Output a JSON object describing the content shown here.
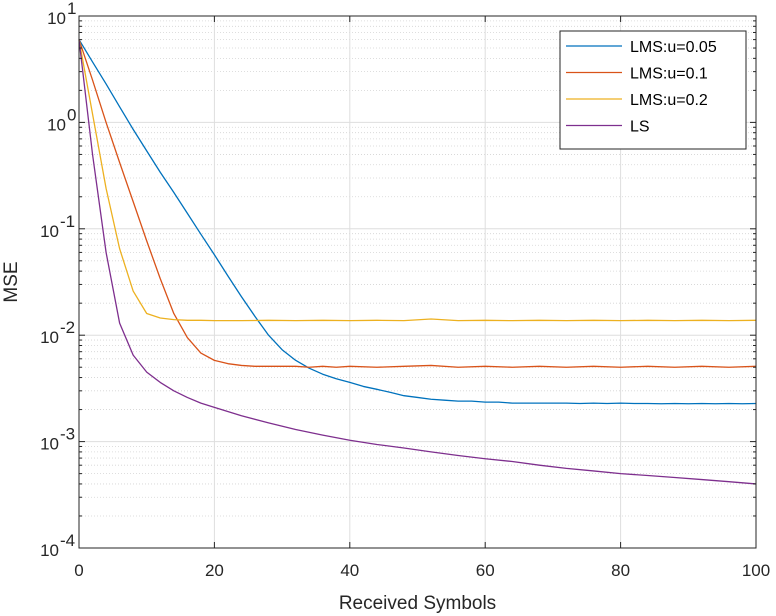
{
  "chart_data": {
    "type": "line",
    "title": "",
    "xlabel": "Received Symbols",
    "ylabel": "MSE",
    "xlim": [
      0,
      100
    ],
    "ylim": [
      0.0001,
      10
    ],
    "yscale": "log",
    "grid": true,
    "legend_position": "top-right",
    "x_ticks": [
      0,
      20,
      40,
      60,
      80,
      100
    ],
    "y_tick_labels": [
      {
        "base": "10",
        "exp": "1"
      },
      {
        "base": "10",
        "exp": "0"
      },
      {
        "base": "10",
        "exp": "-1"
      },
      {
        "base": "10",
        "exp": "-2"
      },
      {
        "base": "10",
        "exp": "-3"
      },
      {
        "base": "10",
        "exp": "-4"
      }
    ],
    "series": [
      {
        "name": "LMS:u=0.05",
        "color": "#0072BD",
        "x": [
          0,
          2,
          4,
          6,
          8,
          10,
          12,
          14,
          16,
          18,
          20,
          22,
          24,
          26,
          28,
          30,
          32,
          34,
          36,
          38,
          40,
          42,
          44,
          46,
          48,
          50,
          52,
          54,
          56,
          58,
          60,
          62,
          64,
          66,
          68,
          70,
          72,
          74,
          76,
          78,
          80,
          82,
          84,
          86,
          88,
          90,
          92,
          94,
          96,
          98,
          100
        ],
        "y": [
          6.0,
          3.7,
          2.3,
          1.4,
          0.86,
          0.54,
          0.34,
          0.22,
          0.14,
          0.089,
          0.057,
          0.036,
          0.023,
          0.015,
          0.01,
          0.0073,
          0.0058,
          0.0049,
          0.0043,
          0.0039,
          0.0036,
          0.0033,
          0.0031,
          0.0029,
          0.0027,
          0.0026,
          0.0025,
          0.00245,
          0.0024,
          0.0024,
          0.00235,
          0.00235,
          0.0023,
          0.0023,
          0.0023,
          0.0023,
          0.0023,
          0.00228,
          0.0023,
          0.00228,
          0.0023,
          0.00228,
          0.00228,
          0.00227,
          0.00228,
          0.00227,
          0.00228,
          0.00227,
          0.00228,
          0.00227,
          0.00228
        ]
      },
      {
        "name": "LMS:u=0.1",
        "color": "#D95319",
        "x": [
          0,
          2,
          4,
          6,
          8,
          10,
          12,
          14,
          16,
          18,
          20,
          22,
          24,
          26,
          28,
          30,
          32,
          34,
          36,
          38,
          40,
          44,
          48,
          52,
          56,
          60,
          64,
          68,
          72,
          76,
          80,
          84,
          88,
          92,
          96,
          100
        ],
        "y": [
          6.0,
          2.5,
          1.0,
          0.42,
          0.18,
          0.077,
          0.034,
          0.016,
          0.0095,
          0.0068,
          0.0058,
          0.0054,
          0.0052,
          0.0051,
          0.0051,
          0.0051,
          0.0051,
          0.005,
          0.0051,
          0.005,
          0.0051,
          0.005,
          0.0051,
          0.0052,
          0.005,
          0.0051,
          0.005,
          0.0051,
          0.005,
          0.0051,
          0.005,
          0.0051,
          0.005,
          0.0051,
          0.005,
          0.0051
        ]
      },
      {
        "name": "LMS:u=0.2",
        "color": "#EDB120",
        "x": [
          0,
          2,
          4,
          6,
          8,
          10,
          12,
          14,
          16,
          18,
          20,
          24,
          28,
          32,
          36,
          40,
          44,
          48,
          52,
          56,
          60,
          64,
          68,
          72,
          76,
          80,
          84,
          88,
          92,
          96,
          100
        ],
        "y": [
          6.0,
          1.2,
          0.24,
          0.065,
          0.026,
          0.016,
          0.0145,
          0.014,
          0.0138,
          0.0138,
          0.0137,
          0.0137,
          0.0138,
          0.0137,
          0.0138,
          0.0137,
          0.0138,
          0.0137,
          0.0142,
          0.0137,
          0.0138,
          0.0137,
          0.0138,
          0.0137,
          0.0138,
          0.0137,
          0.0138,
          0.0137,
          0.0138,
          0.0137,
          0.0138
        ]
      },
      {
        "name": "LS",
        "color": "#7E2F8E",
        "x": [
          0,
          2,
          4,
          6,
          8,
          10,
          12,
          14,
          16,
          18,
          20,
          24,
          28,
          32,
          36,
          40,
          44,
          48,
          52,
          56,
          60,
          64,
          68,
          72,
          76,
          80,
          84,
          88,
          92,
          96,
          100
        ],
        "y": [
          6.0,
          0.5,
          0.06,
          0.013,
          0.0065,
          0.0045,
          0.0036,
          0.003,
          0.0026,
          0.0023,
          0.0021,
          0.00175,
          0.0015,
          0.0013,
          0.00115,
          0.00103,
          0.00094,
          0.00087,
          0.0008,
          0.00074,
          0.00069,
          0.00065,
          0.0006,
          0.00056,
          0.00053,
          0.0005,
          0.00048,
          0.00046,
          0.00044,
          0.00042,
          0.0004
        ]
      }
    ]
  }
}
